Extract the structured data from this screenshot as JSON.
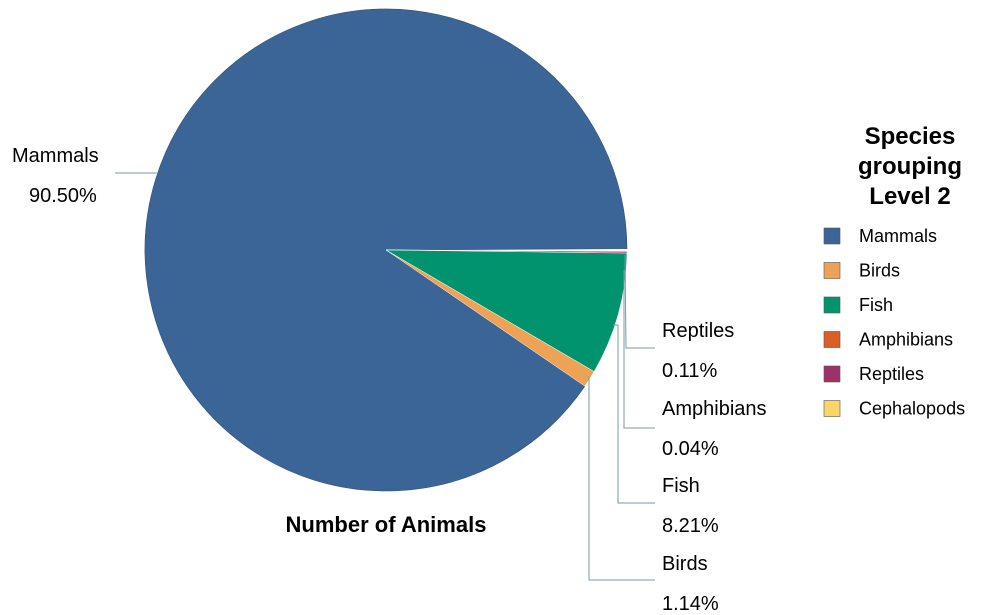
{
  "chart_data": {
    "type": "pie",
    "title": "Number of Animals",
    "legend_title": [
      "Species",
      "grouping",
      "Level 2"
    ],
    "legend_placement": "right",
    "slices": [
      {
        "label": "Mammals",
        "value": 90.5,
        "percent_text": "90.50%",
        "color": "#3b6497"
      },
      {
        "label": "Birds",
        "value": 1.14,
        "percent_text": "1.14%",
        "color": "#eda256"
      },
      {
        "label": "Fish",
        "value": 8.21,
        "percent_text": "8.21%",
        "color": "#00936e"
      },
      {
        "label": "Amphibians",
        "value": 0.04,
        "percent_text": "0.04%",
        "color": "#d95f27"
      },
      {
        "label": "Reptiles",
        "value": 0.11,
        "percent_text": "0.11%",
        "color": "#9e3168"
      },
      {
        "label": "Cephalopods",
        "value": 0.0,
        "percent_text": "",
        "color": "#fdd468"
      }
    ],
    "data_labels": [
      {
        "name": "Mammals",
        "percent": "90.50%"
      },
      {
        "name": "Reptiles",
        "percent": "0.11%"
      },
      {
        "name": "Amphibians",
        "percent": "0.04%"
      },
      {
        "name": "Fish",
        "percent": "8.21%"
      },
      {
        "name": "Birds",
        "percent": "1.14%"
      }
    ],
    "legend": [
      "Mammals",
      "Birds",
      "Fish",
      "Amphibians",
      "Reptiles",
      "Cephalopods"
    ]
  }
}
